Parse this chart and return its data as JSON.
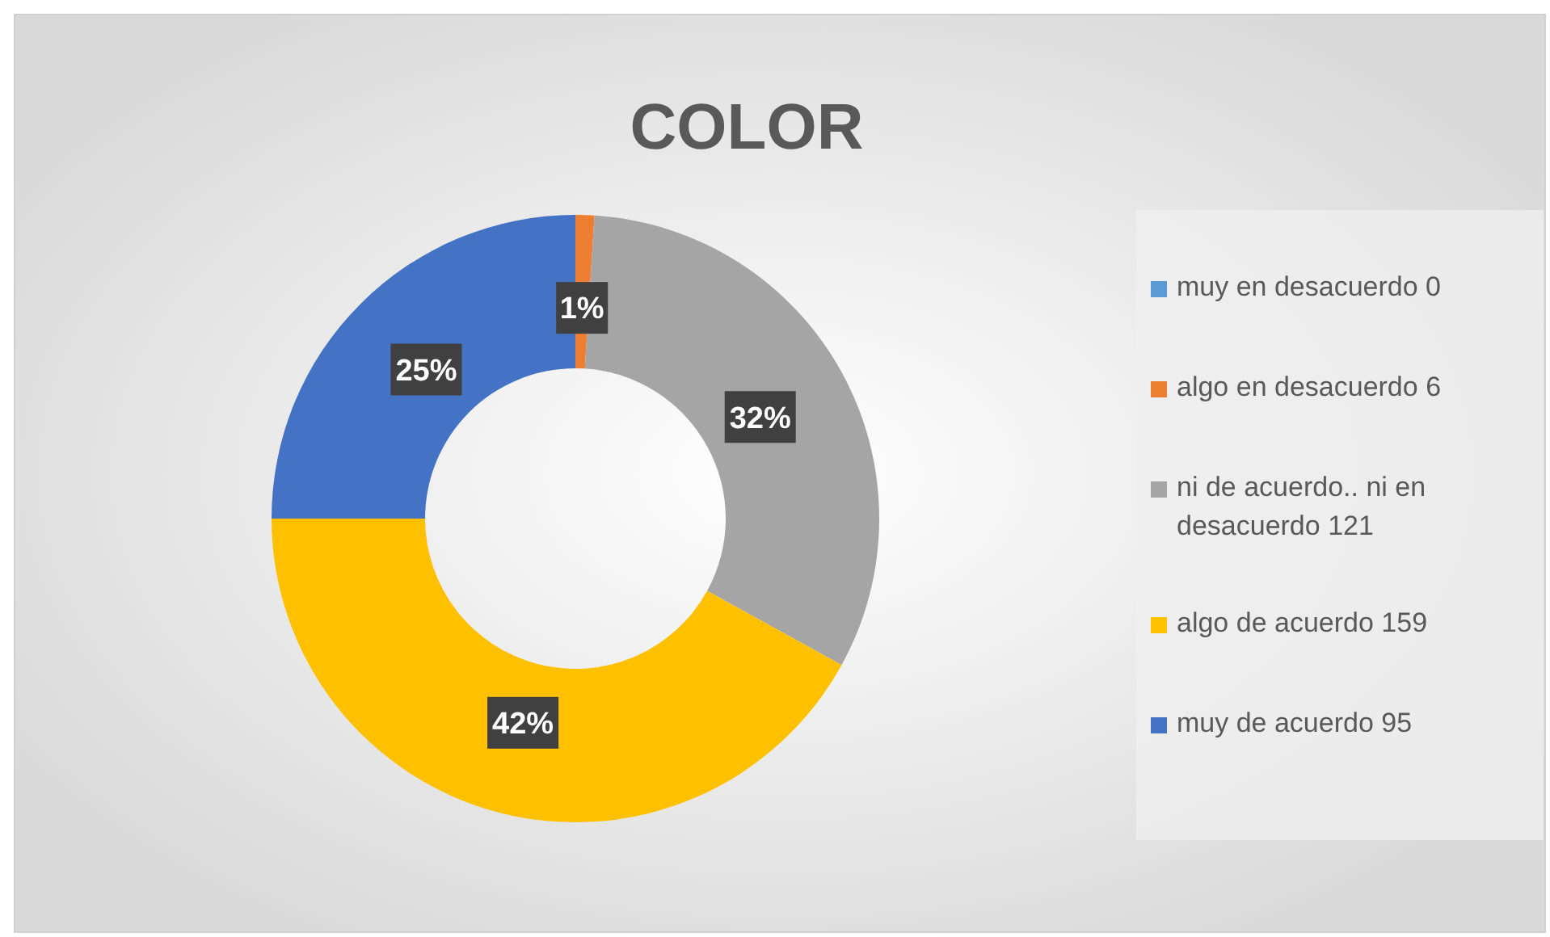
{
  "chart_data": {
    "type": "donut",
    "title": "COLOR",
    "categories": [
      "muy en desacuerdo 0",
      "algo en desacuerdo 6",
      "ni de acuerdo.. ni en desacuerdo 121",
      "algo de acuerdo 159",
      "muy de acuerdo 95"
    ],
    "values": [
      0,
      1,
      32,
      42,
      25
    ],
    "colors": [
      "#5b9bd5",
      "#ed7d31",
      "#a5a5a5",
      "#ffc000",
      "#4472c4"
    ],
    "value_labels": [
      null,
      "1%",
      "32%",
      "42%",
      "25%"
    ],
    "legend": "right"
  }
}
